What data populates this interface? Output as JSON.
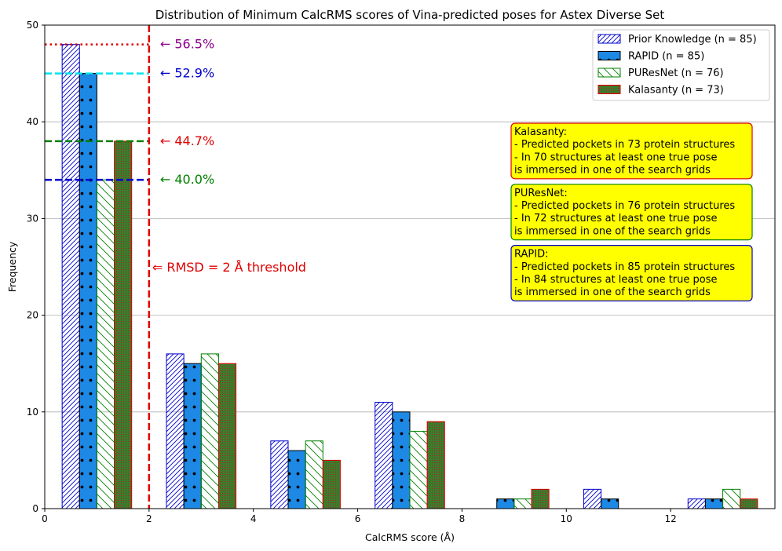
{
  "chart_data": {
    "type": "bar",
    "title": "Distribution of Minimum CalcRMS scores of Vina-predicted poses for Astex Diverse Set",
    "xlabel": "CalcRMS score (Å)",
    "ylabel": "Frequency",
    "xlim": [
      0,
      14
    ],
    "ylim": [
      0,
      50
    ],
    "x_ticks": [
      0,
      2,
      4,
      6,
      8,
      10,
      12
    ],
    "y_ticks": [
      0,
      10,
      20,
      30,
      40,
      50
    ],
    "grid": "y",
    "bin_centers": [
      1,
      3,
      5,
      7,
      9,
      11,
      13
    ],
    "bin_width": 2,
    "series": [
      {
        "name": "Prior Knowledge (n = 85)",
        "values": [
          48,
          16,
          7,
          11,
          0,
          2,
          1
        ],
        "fill": "#ffffff",
        "edge": "#0000cc",
        "hatch": "diagonal"
      },
      {
        "name": "RAPID (n = 85)",
        "values": [
          45,
          15,
          6,
          10,
          1,
          1,
          1
        ],
        "fill": "#1e88e5",
        "edge": "#000000",
        "hatch": "dots"
      },
      {
        "name": "PUResNet (n = 76)",
        "values": [
          34,
          16,
          7,
          8,
          1,
          0,
          2
        ],
        "fill": "#ffffff",
        "edge": "#008000",
        "hatch": "backslash"
      },
      {
        "name": "Kalasanty (n = 73)",
        "values": [
          38,
          15,
          5,
          9,
          2,
          0,
          1
        ],
        "fill": "#3a7d2c",
        "edge": "#e00000",
        "hatch": "fine"
      }
    ],
    "reference_lines": [
      {
        "y": 48,
        "label": "← 56.5%",
        "color": "#e00000",
        "label_color": "#8b008b",
        "style": "dotted"
      },
      {
        "y": 45,
        "label": "← 52.9%",
        "color": "#00e5ee",
        "label_color": "#0000cc",
        "style": "dashed"
      },
      {
        "y": 38,
        "label": "← 44.7%",
        "color": "#008000",
        "label_color": "#e00000",
        "style": "dashed"
      },
      {
        "y": 34,
        "label": "← 40.0%",
        "color": "#0000cc",
        "label_color": "#008000",
        "style": "dashed"
      }
    ],
    "threshold": {
      "x": 2,
      "label": "⇐ RMSD = 2 Å threshold",
      "color": "#e00000"
    },
    "legend_position": "top-right",
    "annotations": [
      {
        "lines": [
          "Kalasanty:",
          "- Predicted pockets in 73 protein structures",
          "- In 70 structures at least one true pose",
          " is immersed in one of the search grids"
        ],
        "edge": "#e00000"
      },
      {
        "lines": [
          "PUResNet:",
          "- Predicted pockets in 76 protein structures",
          "- In 72 structures at least one true pose",
          " is immersed in one of the search grids"
        ],
        "edge": "#008000"
      },
      {
        "lines": [
          "RAPID:",
          "- Predicted pockets in 85 protein structures",
          "- In 84 structures at least one true pose",
          "  is immersed in one of the search grids"
        ],
        "edge": "#0000cc"
      }
    ],
    "annotation_fill": "#ffff00"
  }
}
